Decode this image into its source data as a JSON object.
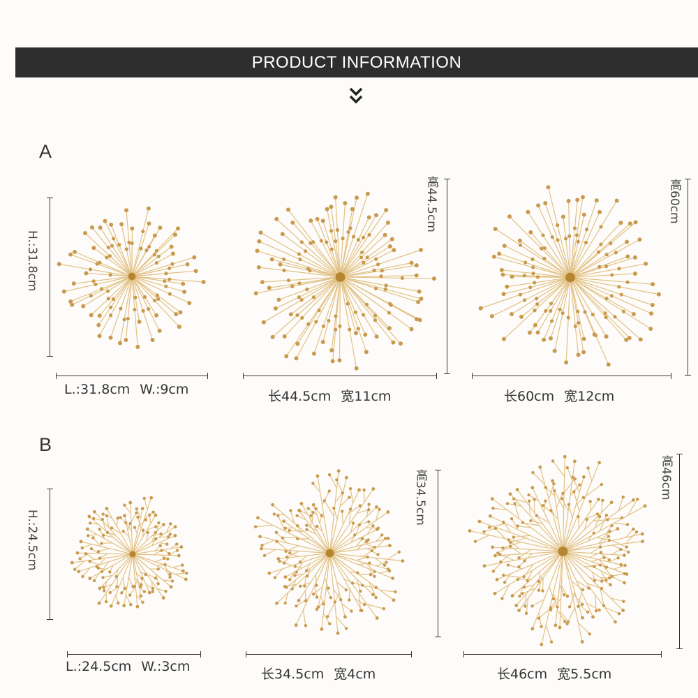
{
  "banner": {
    "title": "PRODUCT INFORMATION"
  },
  "icons": {
    "scroll_down": "double-chevron-down-icon"
  },
  "colors": {
    "gold": "#c99a4d",
    "gold_light": "#e2c184",
    "banner_bg": "#2e2e2e",
    "line": "#333333"
  },
  "rows": [
    {
      "label": "A",
      "items": [
        {
          "length": "L.:31.8cm",
          "width": "W.:9cm",
          "height": "H.:31.8cm",
          "style": "spoke"
        },
        {
          "length": "长44.5cm",
          "width": "宽11cm",
          "height": "高44.5cm",
          "style": "spoke"
        },
        {
          "length": "长60cm",
          "width": "宽12cm",
          "height": "高60cm",
          "style": "spoke"
        }
      ]
    },
    {
      "label": "B",
      "items": [
        {
          "length": "L.:24.5cm",
          "width": "W.:3cm",
          "height": "H.:24.5cm",
          "style": "branch"
        },
        {
          "length": "长34.5cm",
          "width": "宽4cm",
          "height": "高34.5cm",
          "style": "branch"
        },
        {
          "length": "长46cm",
          "width": "宽5.5cm",
          "height": "高46cm",
          "style": "branch"
        }
      ]
    }
  ]
}
